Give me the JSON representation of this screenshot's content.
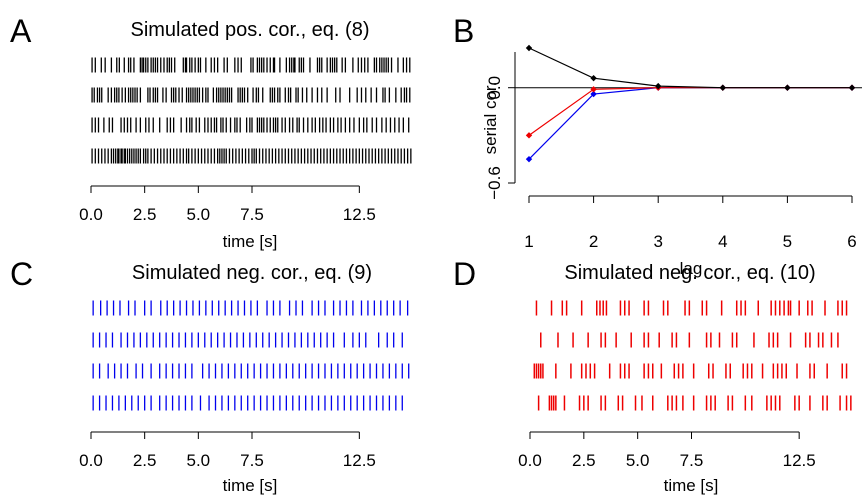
{
  "panels": [
    {
      "letter": "A",
      "title": "Simulated pos. cor., eq. (8)",
      "color": "#000000",
      "xlabel": "time [s]",
      "xticks": [
        "0.0",
        "2.5",
        "5.0",
        "7.5",
        "12.5"
      ],
      "xtick_values": [
        0.0,
        2.5,
        5.0,
        7.5,
        12.5
      ],
      "xlim": [
        0,
        15
      ],
      "trains": [
        [
          0.05,
          0.2,
          0.48,
          0.66,
          0.95,
          1.2,
          1.32,
          1.55,
          1.75,
          1.85,
          2.0,
          2.3,
          2.38,
          2.45,
          2.55,
          2.65,
          2.8,
          2.9,
          3.0,
          3.1,
          3.25,
          3.4,
          3.55,
          3.65,
          3.75,
          3.9,
          4.3,
          4.4,
          4.45,
          4.6,
          4.7,
          4.85,
          5.0,
          5.1,
          5.35,
          5.6,
          5.75,
          5.9,
          6.2,
          6.35,
          6.7,
          6.85,
          7.0,
          7.45,
          7.55,
          7.75,
          7.85,
          7.95,
          8.05,
          8.2,
          8.35,
          8.5,
          8.55,
          8.8,
          9.1,
          9.25,
          9.35,
          9.45,
          9.5,
          9.7,
          9.8,
          9.9,
          10.2,
          10.55,
          10.65,
          10.75,
          11.0,
          11.15,
          11.25,
          11.35,
          11.45,
          11.7,
          11.85,
          12.2,
          12.45,
          12.6,
          12.75,
          12.9,
          13.2,
          13.3,
          13.45,
          13.55,
          13.65,
          13.75,
          13.85,
          14.0,
          14.3,
          14.55,
          14.7,
          14.85
        ],
        [
          0.05,
          0.15,
          0.3,
          0.4,
          0.5,
          0.8,
          0.95,
          1.1,
          1.2,
          1.3,
          1.45,
          1.6,
          1.75,
          1.85,
          1.95,
          2.05,
          2.15,
          2.3,
          2.65,
          2.75,
          2.9,
          3.0,
          3.1,
          3.35,
          3.5,
          3.75,
          3.85,
          3.95,
          4.1,
          4.25,
          4.45,
          4.55,
          4.65,
          4.75,
          4.85,
          4.95,
          5.05,
          5.2,
          5.35,
          5.45,
          5.7,
          5.85,
          5.95,
          6.05,
          6.15,
          6.25,
          6.35,
          6.45,
          6.55,
          6.85,
          6.95,
          7.05,
          7.15,
          7.3,
          7.55,
          7.7,
          7.8,
          8.0,
          8.35,
          8.45,
          8.55,
          8.7,
          8.8,
          9.05,
          9.2,
          9.3,
          9.55,
          9.65,
          9.85,
          10.05,
          10.3,
          10.55,
          10.75,
          11.0,
          11.4,
          11.6,
          12.05,
          12.4,
          12.6,
          12.8,
          13.05,
          13.3,
          13.6,
          13.7,
          13.9,
          14.2,
          14.45,
          14.6,
          14.7,
          14.85
        ],
        [
          0.05,
          0.2,
          0.35,
          0.6,
          0.85,
          1.0,
          1.4,
          1.55,
          1.7,
          1.85,
          2.1,
          2.3,
          2.55,
          2.7,
          2.9,
          3.2,
          3.55,
          3.7,
          3.85,
          4.2,
          4.45,
          4.6,
          4.7,
          4.9,
          5.05,
          5.3,
          5.45,
          5.6,
          5.75,
          5.85,
          6.05,
          6.15,
          6.3,
          6.5,
          6.7,
          6.8,
          6.95,
          7.25,
          7.4,
          7.5,
          7.75,
          7.85,
          7.95,
          8.05,
          8.2,
          8.35,
          8.5,
          8.6,
          8.7,
          8.9,
          9.05,
          9.25,
          9.4,
          9.6,
          9.7,
          9.9,
          10.1,
          10.3,
          10.45,
          10.65,
          10.8,
          10.95,
          11.15,
          11.3,
          11.5,
          11.65,
          11.85,
          12.05,
          12.25,
          12.5,
          12.7,
          12.85,
          13.1,
          13.3,
          13.55,
          13.75,
          13.95,
          14.15,
          14.35,
          14.55,
          14.8
        ],
        [
          0.05,
          0.2,
          0.35,
          0.5,
          0.65,
          0.8,
          0.95,
          1.05,
          1.15,
          1.25,
          1.3,
          1.4,
          1.45,
          1.55,
          1.6,
          1.7,
          1.8,
          1.9,
          2.0,
          2.1,
          2.2,
          2.3,
          2.45,
          2.55,
          2.65,
          2.8,
          2.95,
          3.1,
          3.25,
          3.4,
          3.55,
          3.7,
          3.85,
          4.0,
          4.15,
          4.3,
          4.45,
          4.55,
          4.7,
          4.85,
          5.0,
          5.15,
          5.3,
          5.45,
          5.6,
          5.75,
          5.9,
          6.0,
          6.1,
          6.2,
          6.3,
          6.45,
          6.6,
          6.75,
          6.9,
          7.05,
          7.2,
          7.35,
          7.5,
          7.6,
          7.7,
          7.85,
          8.0,
          8.15,
          8.3,
          8.45,
          8.6,
          8.75,
          8.9,
          9.05,
          9.2,
          9.35,
          9.5,
          9.65,
          9.8,
          9.95,
          10.1,
          10.25,
          10.4,
          10.55,
          10.7,
          10.85,
          11.0,
          11.15,
          11.3,
          11.45,
          11.6,
          11.75,
          11.9,
          12.05,
          12.2,
          12.35,
          12.5,
          12.65,
          12.8,
          12.95,
          13.1,
          13.25,
          13.4,
          13.55,
          13.7,
          13.85,
          14.0,
          14.15,
          14.3,
          14.45,
          14.6,
          14.75,
          14.9
        ]
      ]
    },
    {
      "letter": "C",
      "title": "Simulated neg. cor., eq. (9)",
      "color": "#0000ee",
      "xlabel": "time [s]",
      "xticks": [
        "0.0",
        "2.5",
        "5.0",
        "7.5",
        "12.5"
      ],
      "xtick_values": [
        0.0,
        2.5,
        5.0,
        7.5,
        12.5
      ],
      "xlim": [
        0,
        15
      ],
      "trains": [
        [
          0.1,
          0.45,
          0.75,
          1.05,
          1.35,
          1.75,
          2.05,
          2.5,
          2.8,
          3.25,
          3.55,
          3.85,
          4.15,
          4.45,
          4.75,
          5.05,
          5.35,
          5.65,
          5.95,
          6.25,
          6.55,
          6.85,
          7.15,
          7.45,
          7.75,
          8.2,
          8.5,
          8.8,
          9.25,
          9.55,
          9.85,
          10.3,
          10.6,
          10.9,
          11.3,
          11.6,
          11.9,
          12.2,
          12.6,
          12.9,
          13.2,
          13.5,
          13.8,
          14.1,
          14.4,
          14.75
        ],
        [
          0.1,
          0.4,
          0.7,
          1.0,
          1.4,
          1.7,
          2.0,
          2.3,
          2.6,
          2.9,
          3.2,
          3.5,
          3.8,
          4.1,
          4.4,
          4.7,
          5.0,
          5.3,
          5.6,
          5.9,
          6.2,
          6.5,
          6.8,
          7.1,
          7.4,
          7.7,
          8.0,
          8.3,
          8.6,
          8.9,
          9.2,
          9.5,
          9.8,
          10.1,
          10.4,
          10.7,
          11.0,
          11.3,
          11.8,
          12.2,
          12.5,
          12.8,
          13.4,
          13.8,
          14.1,
          14.5
        ],
        [
          0.1,
          0.4,
          0.8,
          1.1,
          1.4,
          1.7,
          2.1,
          2.4,
          2.8,
          3.2,
          3.5,
          3.8,
          4.1,
          4.4,
          4.7,
          5.2,
          5.5,
          5.8,
          6.1,
          6.4,
          6.7,
          7.0,
          7.3,
          7.6,
          7.9,
          8.2,
          8.5,
          8.8,
          9.1,
          9.4,
          9.7,
          10.0,
          10.3,
          10.6,
          10.9,
          11.2,
          11.5,
          11.8,
          12.1,
          12.4,
          12.7,
          13.0,
          13.3,
          13.6,
          13.9,
          14.2,
          14.5,
          14.8
        ],
        [
          0.1,
          0.4,
          0.7,
          1.0,
          1.3,
          1.6,
          1.9,
          2.2,
          2.5,
          2.8,
          3.2,
          3.5,
          3.8,
          4.1,
          4.4,
          4.7,
          5.1,
          5.5,
          5.8,
          6.1,
          6.4,
          6.7,
          7.0,
          7.3,
          7.6,
          7.9,
          8.2,
          8.5,
          8.8,
          9.1,
          9.4,
          9.7,
          10.0,
          10.3,
          10.6,
          10.9,
          11.2,
          11.5,
          11.8,
          12.1,
          12.4,
          12.7,
          13.0,
          13.3,
          13.6,
          13.9,
          14.2,
          14.5
        ]
      ]
    },
    {
      "letter": "D",
      "title": "Simulated neg. cor., eq. (10)",
      "color": "#ee0000",
      "xlabel": "time [s]",
      "xticks": [
        "0.0",
        "2.5",
        "5.0",
        "7.5",
        "12.5"
      ],
      "xtick_values": [
        0.0,
        2.5,
        5.0,
        7.5,
        12.5
      ],
      "xlim": [
        0,
        15
      ],
      "trains": [
        [
          0.3,
          1.0,
          1.5,
          1.7,
          2.4,
          3.1,
          3.25,
          3.4,
          3.55,
          4.2,
          4.4,
          4.6,
          5.3,
          5.5,
          6.2,
          6.4,
          7.2,
          7.4,
          8.0,
          8.2,
          8.9,
          9.6,
          9.8,
          10.0,
          10.6,
          11.2,
          11.4,
          11.6,
          11.8,
          12.0,
          12.1,
          12.5,
          12.9,
          13.1,
          13.7,
          14.3,
          14.5,
          14.7
        ],
        [
          0.5,
          1.3,
          2.0,
          2.7,
          3.3,
          3.5,
          4.0,
          4.7,
          5.3,
          5.5,
          6.0,
          6.6,
          6.8,
          7.4,
          8.2,
          8.4,
          8.8,
          9.4,
          9.6,
          10.4,
          11.1,
          11.3,
          11.5,
          12.1,
          12.8,
          13.0,
          13.4,
          13.6,
          14.0,
          14.3
        ],
        [
          0.2,
          0.3,
          0.4,
          0.5,
          0.6,
          1.2,
          1.9,
          2.4,
          2.6,
          2.8,
          3.0,
          3.7,
          4.2,
          4.4,
          4.6,
          5.3,
          5.5,
          5.7,
          6.1,
          6.7,
          6.9,
          7.1,
          7.6,
          8.3,
          8.5,
          9.1,
          9.3,
          9.9,
          10.1,
          10.3,
          10.8,
          11.3,
          11.5,
          11.7,
          11.9,
          12.4,
          13.0,
          13.2,
          13.8,
          14.5,
          14.7
        ],
        [
          0.4,
          0.9,
          1.0,
          1.1,
          1.2,
          1.6,
          2.3,
          2.5,
          2.7,
          3.3,
          3.5,
          4.1,
          4.3,
          4.9,
          5.2,
          5.7,
          6.4,
          6.6,
          6.8,
          7.1,
          7.6,
          8.2,
          8.4,
          8.6,
          9.2,
          9.4,
          10.0,
          10.3,
          11.0,
          11.2,
          11.4,
          11.6,
          12.3,
          12.5,
          13.0,
          13.6,
          13.8,
          14.4,
          14.7,
          14.9
        ]
      ]
    }
  ],
  "panelB": {
    "letter": "B",
    "ylabel": "serial cor.",
    "xlabel": "lag",
    "xticks": [
      "1",
      "2",
      "3",
      "4",
      "5",
      "6"
    ],
    "xtick_values": [
      1,
      2,
      3,
      4,
      5,
      6
    ],
    "yticks": [
      "−0.6",
      "0.0"
    ],
    "ytick_values": [
      -0.6,
      0.0
    ],
    "xlim": [
      1,
      6
    ],
    "ylim": [
      -0.6,
      0.25
    ]
  },
  "chart_data": {
    "type": "line",
    "x": [
      1,
      2,
      3,
      4,
      5,
      6
    ],
    "series": [
      {
        "color": "#000000",
        "values": [
          0.25,
          0.06,
          0.01,
          0.0,
          0.0,
          0.0
        ]
      },
      {
        "color": "#ee0000",
        "values": [
          -0.3,
          -0.01,
          0.0,
          0.0,
          0.0,
          0.0
        ]
      },
      {
        "color": "#0000ee",
        "values": [
          -0.45,
          -0.04,
          0.0,
          0.0,
          0.0,
          0.0
        ]
      }
    ],
    "xlabel": "lag",
    "ylabel": "serial cor.",
    "xlim": [
      1,
      6
    ],
    "ylim": [
      -0.6,
      0.25
    ],
    "grid": false
  }
}
